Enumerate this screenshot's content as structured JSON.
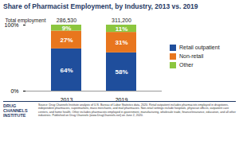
{
  "chart_data": {
    "type": "bar",
    "stacked": true,
    "title": "Share of Pharmacist Employment, by Industry, 2013 vs. 2019",
    "categories": [
      "2013",
      "2019"
    ],
    "series": [
      {
        "name": "Retail outpatient",
        "color": "#1f4e9c",
        "values": [
          64,
          58
        ],
        "value_labels": [
          "64%",
          "58%"
        ]
      },
      {
        "name": "Non-retail",
        "color": "#e8761e",
        "values": [
          27,
          31
        ],
        "value_labels": [
          "27%",
          "31%"
        ]
      },
      {
        "name": "Other",
        "color": "#8cc63f",
        "values": [
          9,
          11
        ],
        "value_labels": [
          "9%",
          "11%"
        ]
      }
    ],
    "totals": {
      "label": "Total employment",
      "values": [
        286530,
        311200
      ],
      "value_labels": [
        "286,530",
        "311,200"
      ]
    },
    "ylim": [
      0,
      100
    ],
    "yticks": [
      {
        "value": 0,
        "label": "0%"
      },
      {
        "value": 100,
        "label": "100%"
      }
    ],
    "data_labels": true,
    "legend": "right",
    "grid": false,
    "source": "Source: Drug Channels Institute analysis of U.S. Bureau of Labor Statistics data, 2020. Retail outpatient includes pharmacists employed in drugstores, independent pharmacies, supermarkets, mass merchants, and mail pharmacies. Non-retail settings include hospitals, physician offices, outpatient care centers, and home health. Other includes pharmacists employed in government, manufacturing, wholesale trade, finance/insurance, education, and all other industries. Published on Drug Channels (www.DrugChannels.net) on June 2, 2020.",
    "logo": "DRUG CHANNELS INSTITUTE"
  }
}
